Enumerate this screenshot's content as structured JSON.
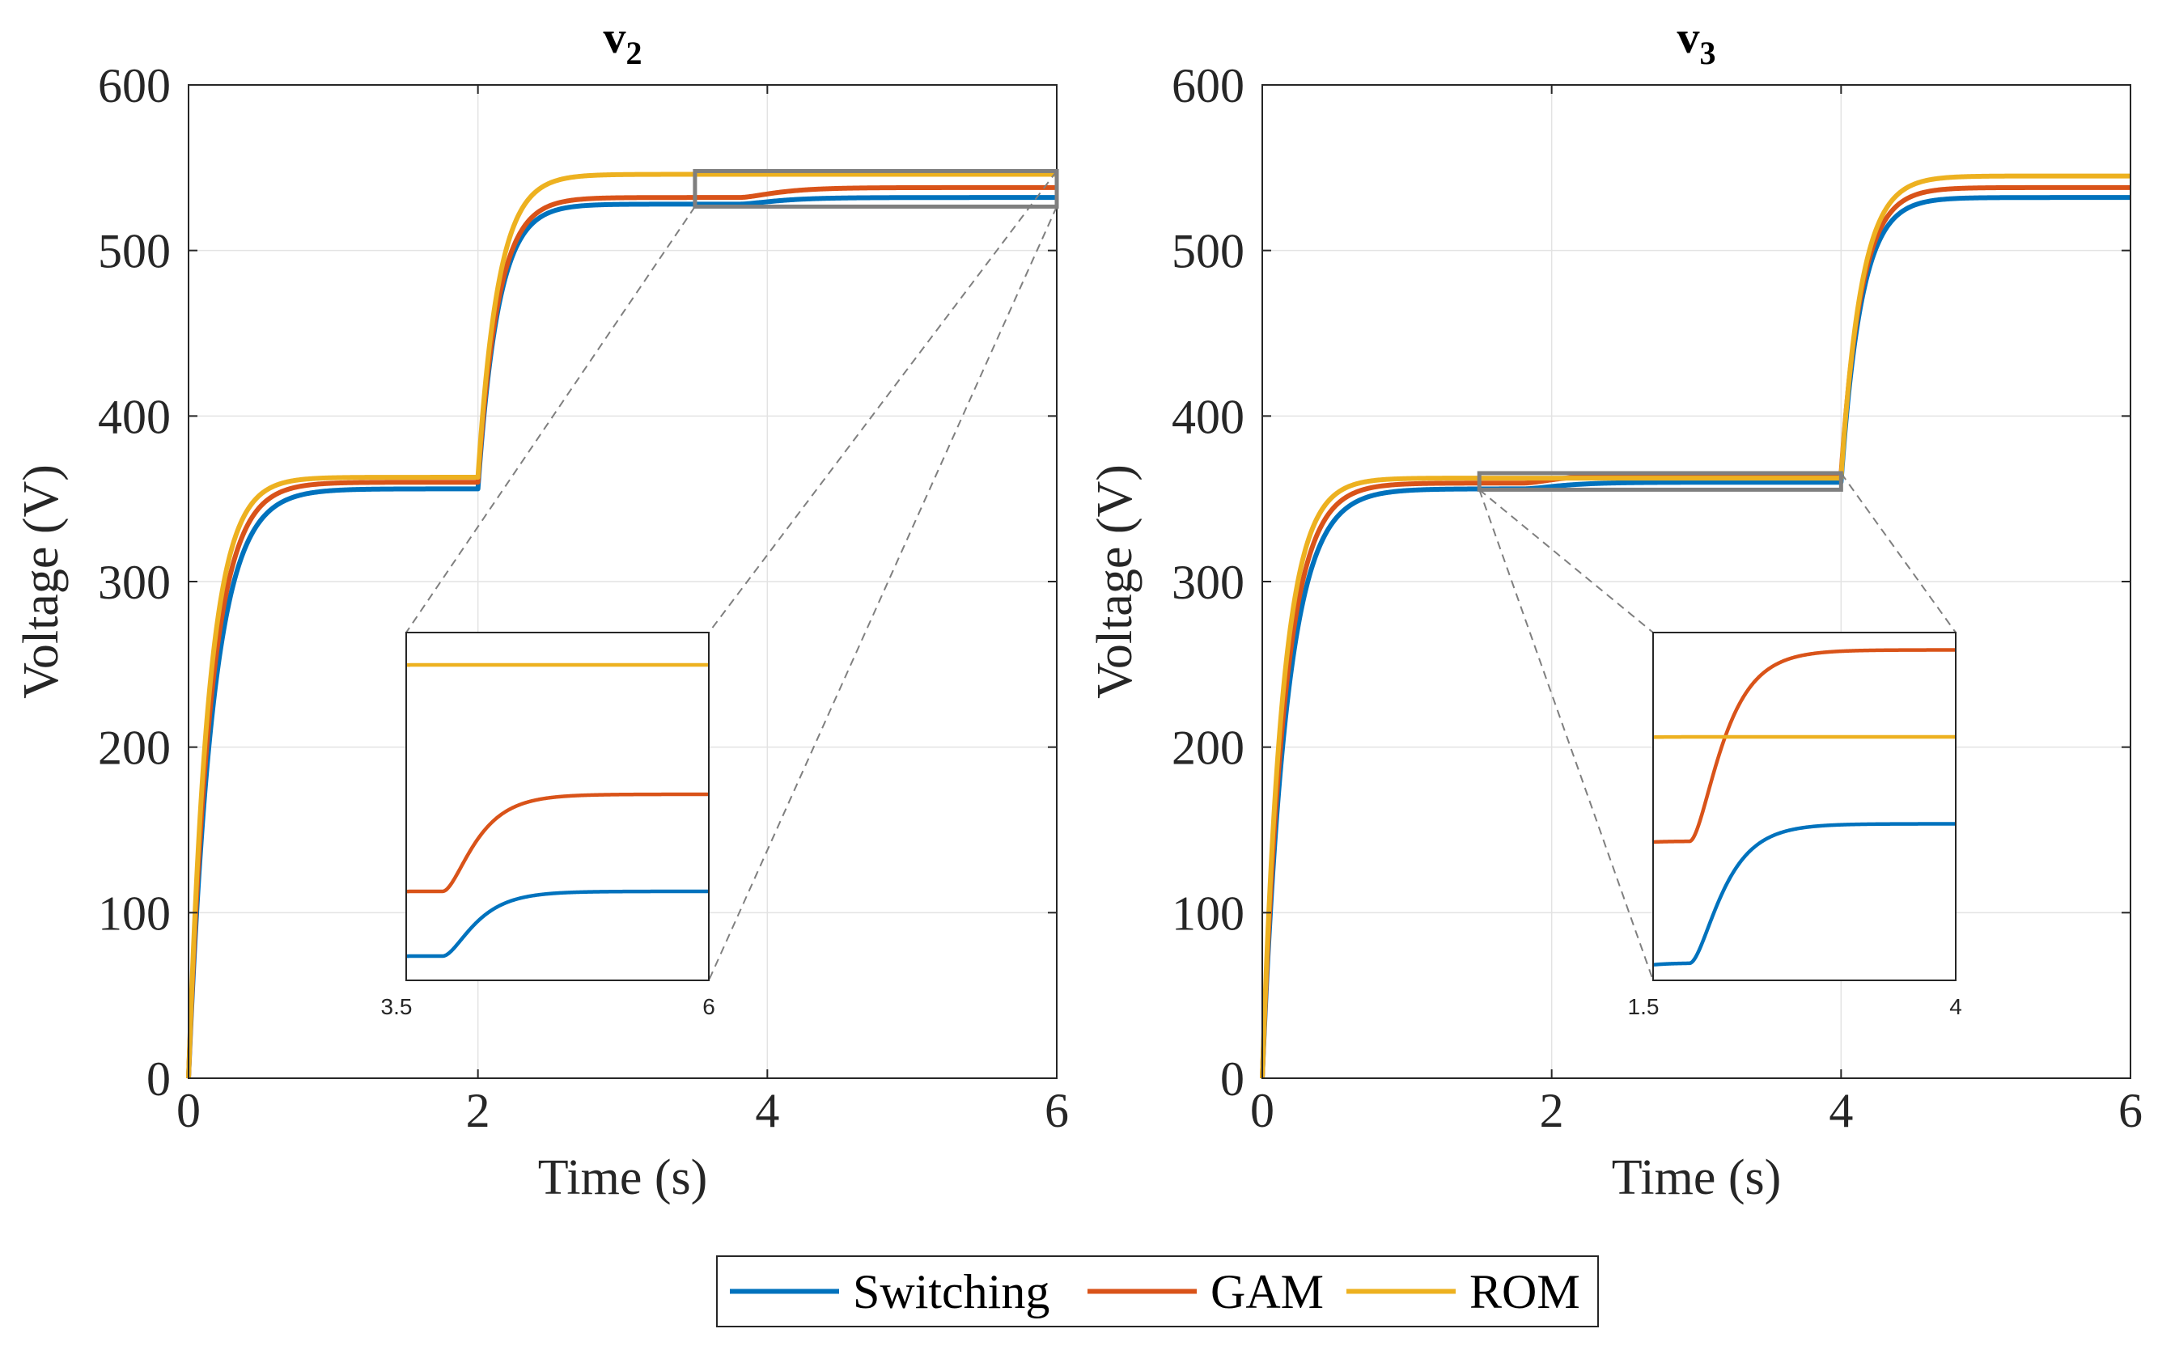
{
  "figure": {
    "legend": {
      "placement": "bottom-center",
      "entries": [
        {
          "name": "Switching",
          "color": "#0072BD"
        },
        {
          "name": "GAM",
          "color": "#D95319"
        },
        {
          "name": "ROM",
          "color": "#EDB120"
        }
      ]
    }
  },
  "chart_data": [
    {
      "type": "line",
      "title_main": "v",
      "title_sub": "2",
      "xlabel": "Time (s)",
      "ylabel": "Voltage (V)",
      "xlim": [
        0,
        6
      ],
      "ylim": [
        0,
        600
      ],
      "xticks": [
        0,
        2,
        4,
        6
      ],
      "yticks": [
        0,
        100,
        200,
        300,
        400,
        500,
        600
      ],
      "grid": true,
      "step_time": 2,
      "series": [
        {
          "name": "Switching",
          "color": "#0072BD",
          "level1": 356,
          "level2": 528,
          "level3": 532,
          "step2_time": 3.8,
          "rise_tau": 0.17
        },
        {
          "name": "GAM",
          "color": "#D95319",
          "level1": 360,
          "level2": 532,
          "level3": 538,
          "step2_time": 3.8,
          "rise_tau": 0.155
        },
        {
          "name": "ROM",
          "color": "#EDB120",
          "level1": 363,
          "level2": 546,
          "level3": 546,
          "step2_time": 3.8,
          "rise_tau": 0.14
        }
      ],
      "inset": {
        "xlim": [
          3.5,
          6
        ],
        "ylim": [
          526.5,
          548
        ],
        "xtick_labels": [
          "3.5",
          "6"
        ]
      }
    },
    {
      "type": "line",
      "title_main": "v",
      "title_sub": "3",
      "xlabel": "Time (s)",
      "ylabel": "Voltage (V)",
      "xlim": [
        0,
        6
      ],
      "ylim": [
        0,
        600
      ],
      "xticks": [
        0,
        2,
        4,
        6
      ],
      "yticks": [
        0,
        100,
        200,
        300,
        400,
        500,
        600
      ],
      "grid": true,
      "step_time": 4,
      "series": [
        {
          "name": "Switching",
          "color": "#0072BD",
          "level1": 356,
          "level2": 360,
          "level3": 532,
          "step2_time": 1.8,
          "rise_tau": 0.17
        },
        {
          "name": "GAM",
          "color": "#D95319",
          "level1": 359.5,
          "level2": 365,
          "level3": 538,
          "step2_time": 1.8,
          "rise_tau": 0.155
        },
        {
          "name": "ROM",
          "color": "#EDB120",
          "level1": 362.5,
          "level2": 362.5,
          "level3": 545,
          "step2_time": 1.8,
          "rise_tau": 0.14
        }
      ],
      "inset": {
        "xlim": [
          1.5,
          4
        ],
        "ylim": [
          355.5,
          365.5
        ],
        "xtick_labels": [
          "1.5",
          "4"
        ]
      }
    }
  ]
}
